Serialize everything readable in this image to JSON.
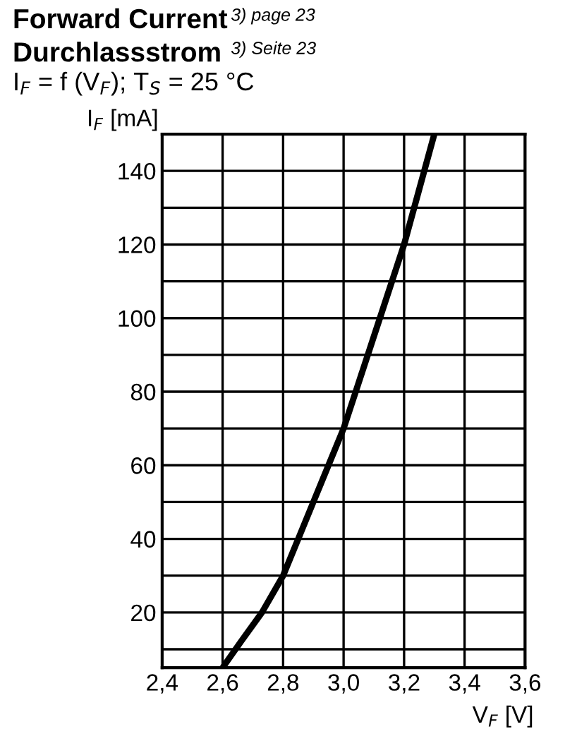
{
  "chart_data": {
    "type": "line",
    "title": "Forward Current",
    "subtitle": "Durchlassstrom",
    "annotations": [
      "3) page 23",
      "3) Seite 23",
      "I$_{F}$ = f (V$_{F}$); T$_{S}$ = 25 °C"
    ],
    "xlabel": "V$_{F}$ [V]",
    "ylabel": "I$_{F}$ [mA]",
    "series": [
      {
        "color": "#000000",
        "x": [
          2.6,
          2.66,
          2.73,
          2.8,
          2.85,
          2.9,
          2.95,
          3.0,
          3.04,
          3.12,
          3.2,
          3.3
        ],
        "values": [
          5,
          12,
          20,
          30,
          40,
          50,
          60,
          70,
          80,
          100,
          120,
          150
        ]
      }
    ],
    "xlim": [
      2.4,
      3.6
    ],
    "xticks": [
      {
        "value": 2.4,
        "label": "2,4"
      },
      {
        "value": 2.6,
        "label": "2,6"
      },
      {
        "value": 2.8,
        "label": "2,8"
      },
      {
        "value": 3.0,
        "label": "3,0"
      },
      {
        "value": 3.2,
        "label": "3,2"
      },
      {
        "value": 3.4,
        "label": "3,4"
      },
      {
        "value": 3.6,
        "label": "3,6"
      }
    ],
    "ylim": [
      5,
      150
    ],
    "yticks": [
      {
        "value": 10,
        "label": null
      },
      20,
      {
        "value": 30,
        "label": null
      },
      40,
      {
        "value": 50,
        "label": null
      },
      60,
      {
        "value": 70,
        "label": null
      },
      80,
      {
        "value": 90,
        "label": null
      },
      100,
      {
        "value": 110,
        "label": null
      },
      120,
      {
        "value": 130,
        "label": null
      },
      140
    ],
    "grid": true,
    "marker": "none",
    "line_style": "solid",
    "legend": false
  }
}
